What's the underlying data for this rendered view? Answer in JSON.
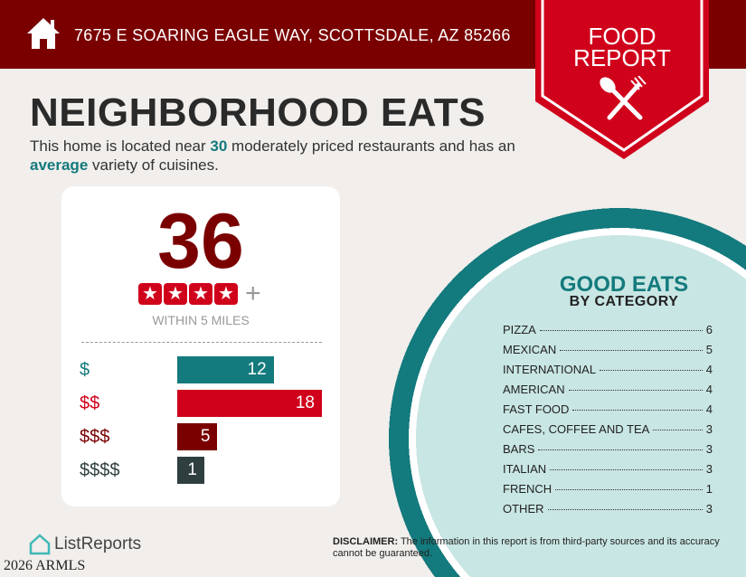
{
  "header": {
    "address": "7675 E SOARING EAGLE WAY, SCOTTSDALE, AZ 85266",
    "icon": "home-icon"
  },
  "badge": {
    "line1": "FOOD",
    "line2": "REPORT",
    "icon": "utensils-icon"
  },
  "title": "NEIGHBORHOOD EATS",
  "subtitle": {
    "pre": "This home is located near ",
    "count": "30",
    "mid": " moderately priced restaurants and has an ",
    "variety": "average",
    "post": " variety of cuisines."
  },
  "score": {
    "value": "36",
    "stars": 4,
    "plus": "+",
    "within": "WITHIN 5 MILES"
  },
  "prices": [
    {
      "label": "$",
      "count": "12",
      "color": "#137a7d"
    },
    {
      "label": "$$",
      "count": "18",
      "color": "#d0021b"
    },
    {
      "label": "$$$",
      "count": "5",
      "color": "#7a0000"
    },
    {
      "label": "$$$$",
      "count": "1",
      "color": "#2f3f3f"
    }
  ],
  "good_eats": {
    "title": "GOOD EATS",
    "subtitle": "BY CATEGORY",
    "categories": [
      {
        "name": "PIZZA",
        "count": "6"
      },
      {
        "name": "MEXICAN",
        "count": "5"
      },
      {
        "name": "INTERNATIONAL",
        "count": "4"
      },
      {
        "name": "AMERICAN",
        "count": "4"
      },
      {
        "name": "FAST FOOD",
        "count": "4"
      },
      {
        "name": "CAFES, COFFEE AND TEA",
        "count": "3"
      },
      {
        "name": "BARS",
        "count": "3"
      },
      {
        "name": "ITALIAN",
        "count": "3"
      },
      {
        "name": "FRENCH",
        "count": "1"
      },
      {
        "name": "OTHER",
        "count": "3"
      }
    ]
  },
  "footer": {
    "logo": "ListReports",
    "copyright": "2026 ARMLS",
    "disclaimer_label": "DISCLAIMER:",
    "disclaimer": " The information in this report is from third-party sources and its accuracy cannot be guaranteed."
  }
}
